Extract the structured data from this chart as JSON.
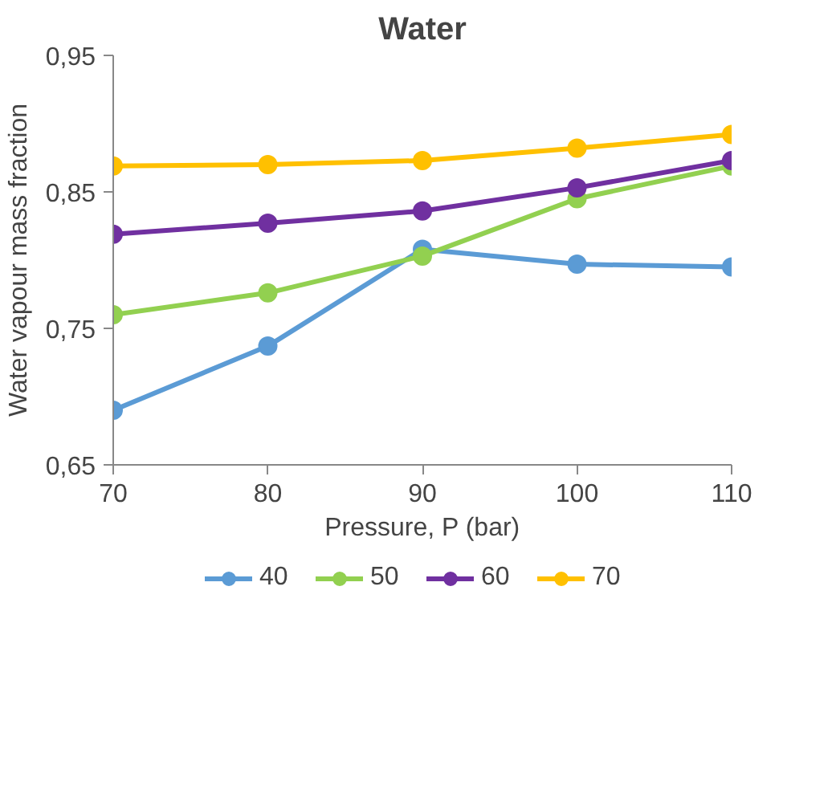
{
  "chart_data": {
    "type": "line",
    "title": "Water",
    "xlabel": "Pressure, P (bar)",
    "ylabel": "Water vapour mass fraction",
    "x": [
      70,
      80,
      90,
      100,
      110
    ],
    "xlim": [
      70,
      110
    ],
    "xticks": [
      70,
      80,
      90,
      100,
      110
    ],
    "ylim": [
      0.65,
      0.95
    ],
    "yticks": [
      {
        "value": 0.65,
        "label": "0,65"
      },
      {
        "value": 0.75,
        "label": "0,75"
      },
      {
        "value": 0.85,
        "label": "0,85"
      },
      {
        "value": 0.95,
        "label": "0,95"
      }
    ],
    "series": [
      {
        "name": "40",
        "color": "#5b9bd5",
        "values": [
          0.69,
          0.737,
          0.808,
          0.797,
          0.795
        ]
      },
      {
        "name": "50",
        "color": "#92d050",
        "values": [
          0.76,
          0.776,
          0.803,
          0.845,
          0.869
        ]
      },
      {
        "name": "60",
        "color": "#7030a0",
        "values": [
          0.819,
          0.827,
          0.836,
          0.853,
          0.873
        ]
      },
      {
        "name": "70",
        "color": "#ffc000",
        "values": [
          0.869,
          0.87,
          0.873,
          0.882,
          0.892
        ]
      }
    ],
    "marker": "circle",
    "line_style": "solid",
    "legend": "bottom",
    "grid": false
  }
}
